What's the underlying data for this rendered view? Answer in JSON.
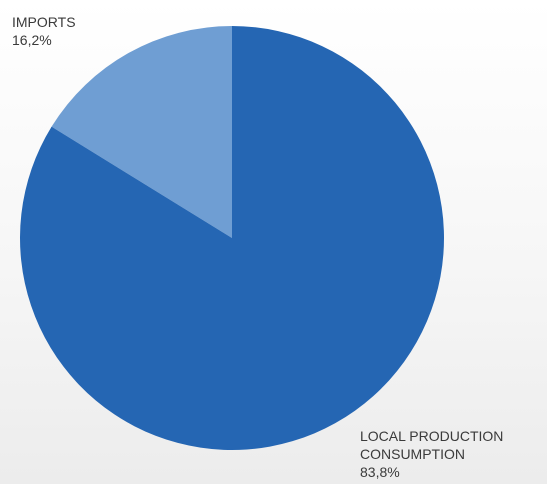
{
  "chart_data": {
    "type": "pie",
    "slices": [
      {
        "label_lines": [
          "IMPORTS"
        ],
        "value": 16.2,
        "value_text": "16,2%",
        "color": "#6f9ed3"
      },
      {
        "label_lines": [
          "LOCAL PRODUCTION",
          "CONSUMPTION"
        ],
        "value": 83.8,
        "value_text": "83,8%",
        "color": "#2566b3"
      }
    ],
    "start_angle_deg": 0,
    "direction": "counterclockwise",
    "legend": "none"
  }
}
